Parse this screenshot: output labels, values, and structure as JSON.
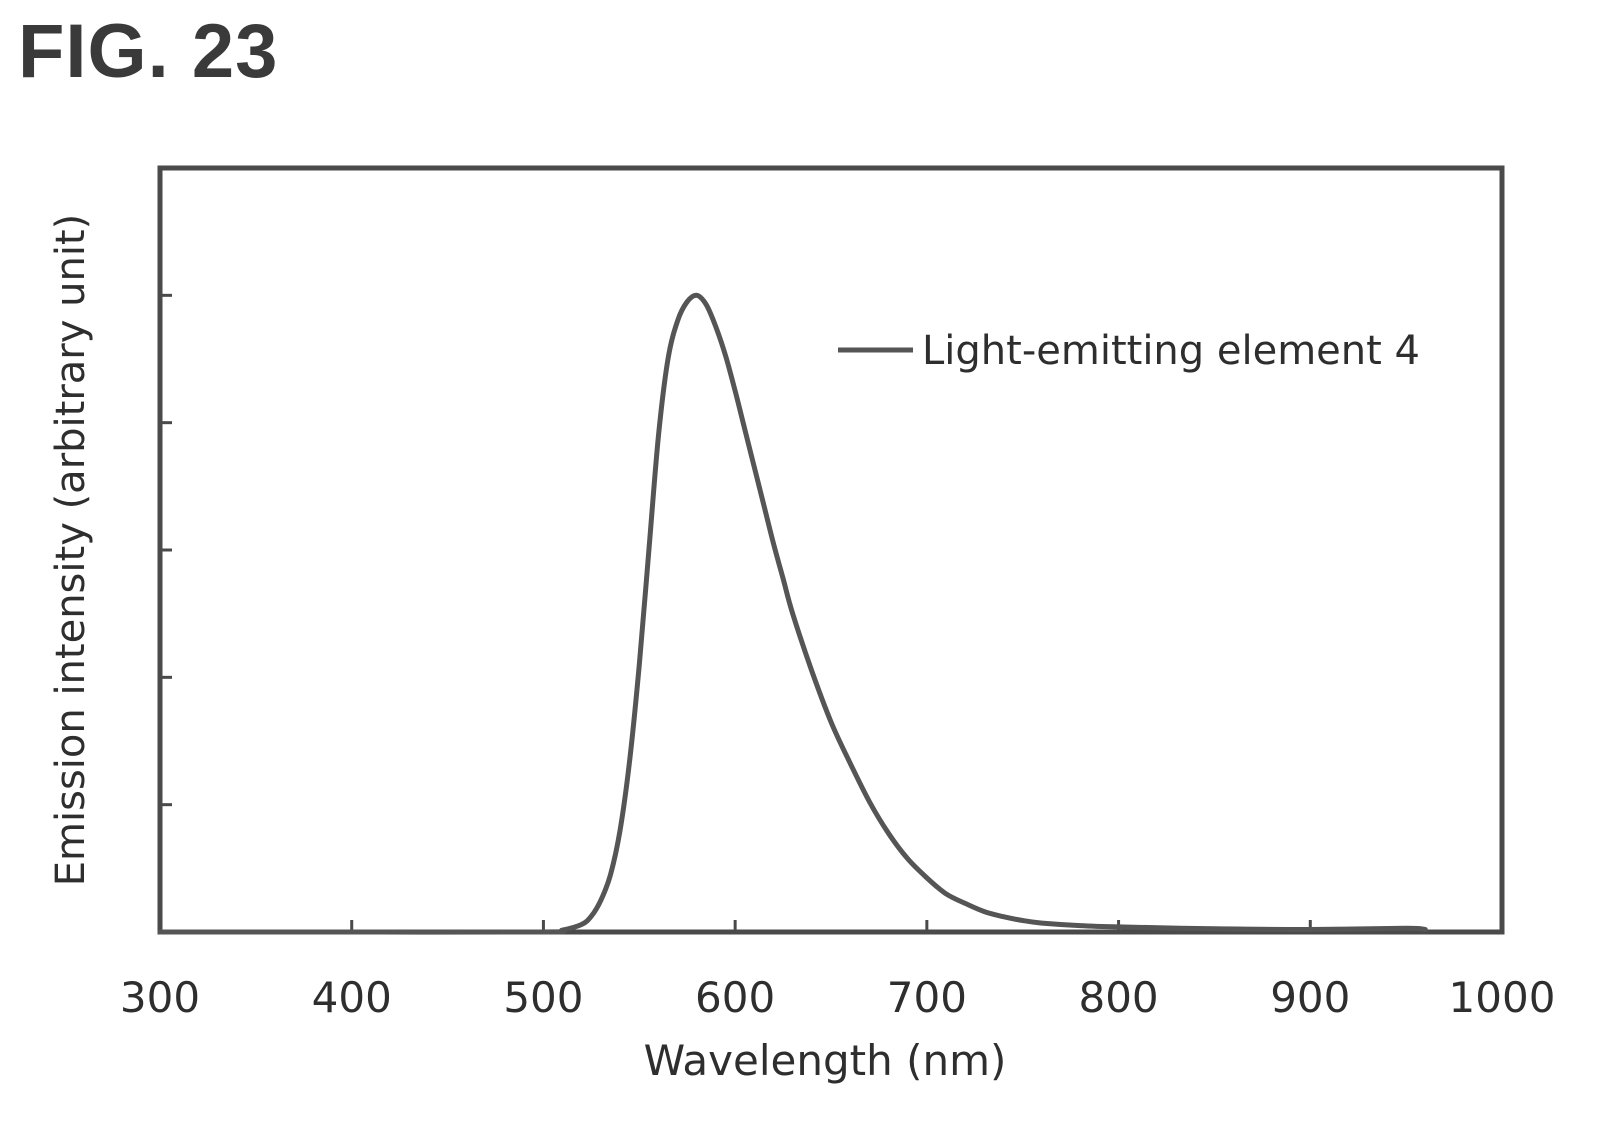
{
  "figure": {
    "label": "FIG. 23"
  },
  "chart_data": {
    "type": "line",
    "xlabel": "Wavelength (nm)",
    "ylabel": "Emission intensity (arbitrary unit)",
    "xlim": [
      300,
      1000
    ],
    "ylim": [
      0,
      1.2
    ],
    "xticks": [
      300,
      400,
      500,
      600,
      700,
      800,
      900,
      1000
    ],
    "xtick_labels": [
      "300",
      "400",
      "500",
      "600",
      "700",
      "800",
      "900",
      "1000"
    ],
    "yticks": [
      0.2,
      0.4,
      0.6,
      0.8,
      1.0
    ],
    "ytick_labels_shown": false,
    "grid": false,
    "legend": {
      "position": "top-right"
    },
    "series": [
      {
        "name": "Light-emitting element 4",
        "color": "#555555",
        "x": [
          300,
          400,
          500,
          510,
          520,
          525,
          530,
          535,
          540,
          545,
          550,
          555,
          560,
          565,
          570,
          575,
          580,
          585,
          590,
          595,
          600,
          605,
          610,
          615,
          620,
          625,
          630,
          640,
          650,
          660,
          670,
          680,
          690,
          700,
          710,
          720,
          730,
          740,
          750,
          760,
          780,
          800,
          850,
          900,
          950,
          960
        ],
        "y": [
          0.0,
          0.0,
          0.0,
          0.003,
          0.012,
          0.025,
          0.05,
          0.09,
          0.16,
          0.27,
          0.42,
          0.6,
          0.78,
          0.9,
          0.96,
          0.99,
          1.0,
          0.985,
          0.95,
          0.905,
          0.85,
          0.79,
          0.73,
          0.67,
          0.61,
          0.555,
          0.5,
          0.41,
          0.33,
          0.265,
          0.205,
          0.155,
          0.115,
          0.085,
          0.06,
          0.045,
          0.032,
          0.024,
          0.018,
          0.014,
          0.01,
          0.008,
          0.005,
          0.004,
          0.006,
          0.004
        ]
      }
    ]
  }
}
